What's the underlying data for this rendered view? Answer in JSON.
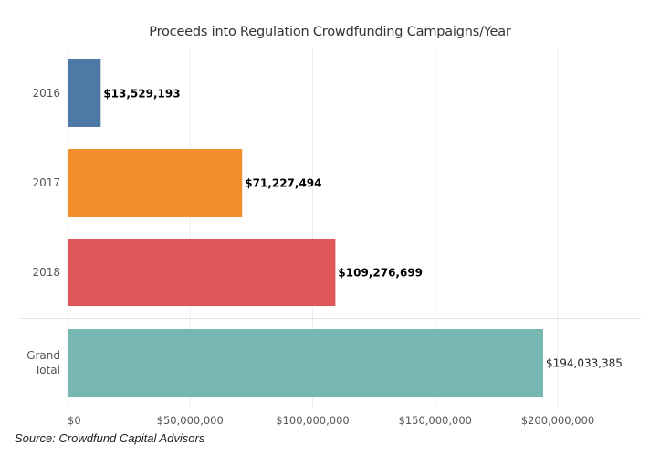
{
  "chart_data": {
    "type": "bar",
    "orientation": "horizontal",
    "title": "Proceeds into Regulation Crowdfunding Campaigns/Year",
    "categories": [
      "2016",
      "2017",
      "2018",
      "Grand Total"
    ],
    "category_lines": [
      [
        "2016"
      ],
      [
        "2017"
      ],
      [
        "2018"
      ],
      [
        "Grand",
        "Total"
      ]
    ],
    "values": [
      13529193,
      71227494,
      109276699,
      194033385
    ],
    "value_labels": [
      "$13,529,193",
      "$71,227,494",
      "$109,276,699",
      "$194,033,385"
    ],
    "colors": [
      "#4e79a7",
      "#f28e2b",
      "#e15759",
      "#76b7b2"
    ],
    "xlabel": "",
    "ylabel": "",
    "xlim": [
      0,
      235000000
    ],
    "xticks": [
      0,
      50000000,
      100000000,
      150000000,
      200000000
    ],
    "xtick_labels": [
      "$0",
      "$50,000,000",
      "$100,000,000",
      "$150,000,000",
      "$200,000,000"
    ],
    "grid": true,
    "legend": "none"
  },
  "source": "Source: Crowdfund Capital Advisors"
}
